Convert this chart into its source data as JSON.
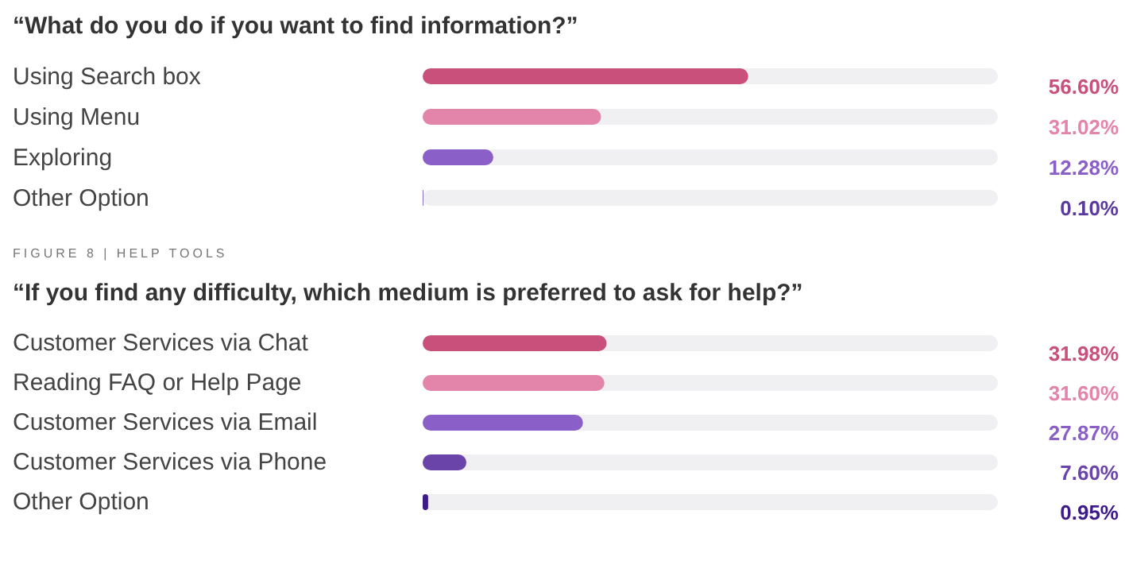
{
  "chart_data": [
    {
      "type": "bar",
      "orientation": "horizontal",
      "title": "“What do you do if you want to find information?”",
      "categories": [
        "Using Search box",
        "Using Menu",
        "Exploring",
        "Other Option"
      ],
      "values": [
        56.6,
        31.02,
        12.28,
        0.1
      ],
      "colors": [
        "#c9507a",
        "#e384aa",
        "#8a5fc7",
        "#5b3a9e"
      ],
      "value_labels": [
        "56.60%",
        "31.02%",
        "12.28%",
        "0.10%"
      ],
      "xlim": [
        0,
        100
      ],
      "tick_labels": "y"
    },
    {
      "type": "bar",
      "orientation": "horizontal",
      "annotations": [
        "FIGURE 8 | HELP TOOLS"
      ],
      "title": "“If you find any difficulty, which medium is preferred to ask for help?”",
      "categories": [
        "Customer Services via Chat",
        "Reading FAQ or Help Page",
        "Customer Services via Email",
        "Customer Services via Phone",
        "Other Option"
      ],
      "values": [
        31.98,
        31.6,
        27.87,
        7.6,
        0.95
      ],
      "colors": [
        "#c9507a",
        "#e384aa",
        "#8a5fc7",
        "#6a44a8",
        "#3d1a8a"
      ],
      "value_labels": [
        "31.98%",
        "31.60%",
        "27.87%",
        "7.60%",
        "0.95%"
      ],
      "xlim": [
        0,
        100
      ],
      "tick_labels": "y"
    }
  ]
}
